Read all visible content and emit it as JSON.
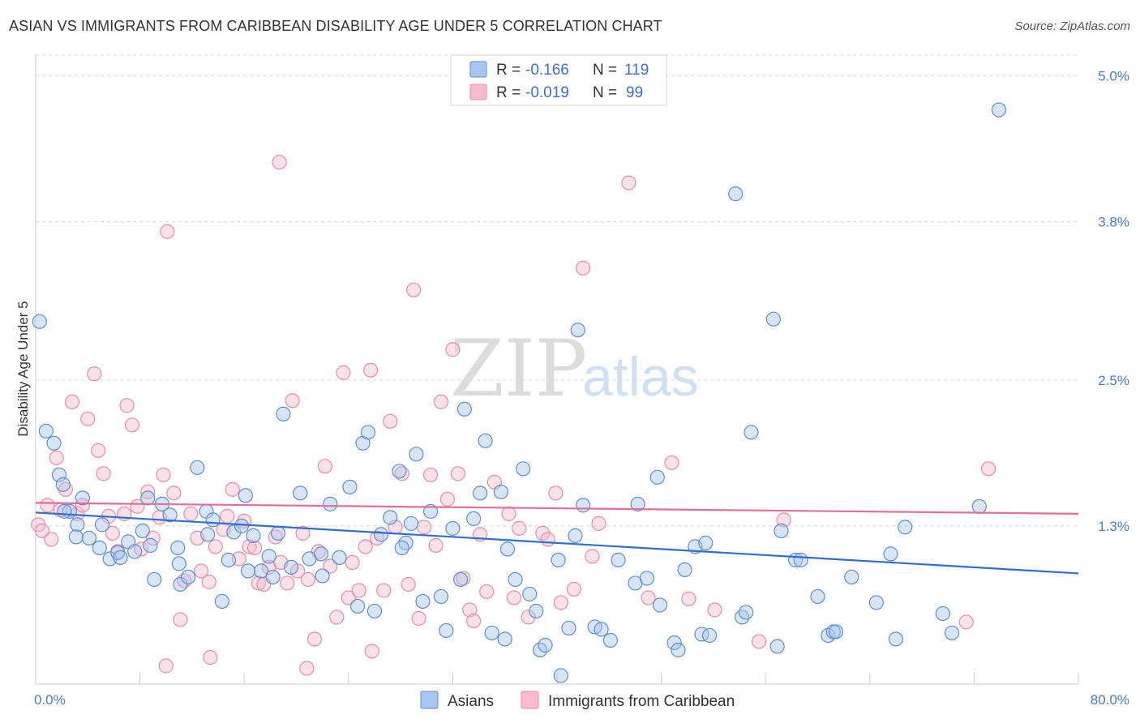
{
  "title": "ASIAN VS IMMIGRANTS FROM CARIBBEAN DISABILITY AGE UNDER 5 CORRELATION CHART",
  "source": "Source: ZipAtlas.com",
  "watermark": {
    "zip": "ZIP",
    "atlas": "atlas"
  },
  "colors": {
    "asian_fill": "#a9c6ee",
    "asian_stroke": "#5b8fd6",
    "asian_line": "#2f6fcf",
    "carib_fill": "#f6bccd",
    "carib_stroke": "#e98aa6",
    "carib_line": "#e0709a",
    "tick_label": "#4a7bc4",
    "grid": "#d8d8d8"
  },
  "legend": {
    "rows": [
      {
        "r_label": "R =",
        "r_value": "-0.166",
        "n_label": "N =",
        "n_value": "119"
      },
      {
        "r_label": "R =",
        "r_value": "-0.019",
        "n_label": "N =",
        "n_value": "99"
      }
    ]
  },
  "chart_data": {
    "type": "scatter",
    "title": "ASIAN VS IMMIGRANTS FROM CARIBBEAN DISABILITY AGE UNDER 5 CORRELATION CHART",
    "xlabel": "",
    "ylabel": "Disability Age Under 5",
    "xlim": [
      0,
      80
    ],
    "ylim": [
      0,
      5.17
    ],
    "x_tick_labels": [
      "0.0%",
      "80.0%"
    ],
    "y_ticks": [
      1.3,
      2.5,
      3.8,
      5.0
    ],
    "y_tick_labels": [
      "1.3%",
      "2.5%",
      "3.8%",
      "5.0%"
    ],
    "grid": "horizontal dashed",
    "legend_placement": "top-center",
    "series": [
      {
        "name": "Asians",
        "r": -0.166,
        "n": 119,
        "trend": [
          [
            0,
            1.41
          ],
          [
            80,
            0.91
          ]
        ],
        "points": [
          [
            0.3,
            2.98
          ],
          [
            0.8,
            2.08
          ],
          [
            1.4,
            1.98
          ],
          [
            1.8,
            1.72
          ],
          [
            2.1,
            1.64
          ],
          [
            2.6,
            1.42
          ],
          [
            3.2,
            1.31
          ],
          [
            3.6,
            1.53
          ],
          [
            2.2,
            1.42
          ],
          [
            3.1,
            1.21
          ],
          [
            4.1,
            1.2
          ],
          [
            5.1,
            1.31
          ],
          [
            5.7,
            1.03
          ],
          [
            6.3,
            1.08
          ],
          [
            7.1,
            1.17
          ],
          [
            7.6,
            1.09
          ],
          [
            8.2,
            1.26
          ],
          [
            8.8,
            1.14
          ],
          [
            9.1,
            0.86
          ],
          [
            9.7,
            1.48
          ],
          [
            10.3,
            1.39
          ],
          [
            11.1,
            0.82
          ],
          [
            11.7,
            0.88
          ],
          [
            12.4,
            1.78
          ],
          [
            13.1,
            1.42
          ],
          [
            13.6,
            1.35
          ],
          [
            14.3,
            0.68
          ],
          [
            14.8,
            1.02
          ],
          [
            15.2,
            1.25
          ],
          [
            16.1,
            1.55
          ],
          [
            16.7,
            1.22
          ],
          [
            17.3,
            0.93
          ],
          [
            17.9,
            1.05
          ],
          [
            18.6,
            1.24
          ],
          [
            19.0,
            2.22
          ],
          [
            19.6,
            0.96
          ],
          [
            20.3,
            1.57
          ],
          [
            21.0,
            1.03
          ],
          [
            21.9,
            1.07
          ],
          [
            22.6,
            1.48
          ],
          [
            23.3,
            1.04
          ],
          [
            24.1,
            1.62
          ],
          [
            25.1,
            1.98
          ],
          [
            25.5,
            2.07
          ],
          [
            26.0,
            0.6
          ],
          [
            26.5,
            1.23
          ],
          [
            27.2,
            1.37
          ],
          [
            27.9,
            1.75
          ],
          [
            28.4,
            1.16
          ],
          [
            29.2,
            1.89
          ],
          [
            29.7,
            0.68
          ],
          [
            30.3,
            1.42
          ],
          [
            31.1,
            0.72
          ],
          [
            31.5,
            0.44
          ],
          [
            32.0,
            1.28
          ],
          [
            32.6,
            0.86
          ],
          [
            32.9,
            2.26
          ],
          [
            33.6,
            1.36
          ],
          [
            34.1,
            1.57
          ],
          [
            34.5,
            2.0
          ],
          [
            35.0,
            0.42
          ],
          [
            35.7,
            1.58
          ],
          [
            36.2,
            1.11
          ],
          [
            36.8,
            0.86
          ],
          [
            37.4,
            1.77
          ],
          [
            37.9,
            0.74
          ],
          [
            38.4,
            0.6
          ],
          [
            38.7,
            0.28
          ],
          [
            39.1,
            0.32
          ],
          [
            40.1,
            1.02
          ],
          [
            40.3,
            0.07
          ],
          [
            40.9,
            0.46
          ],
          [
            41.6,
            2.91
          ],
          [
            41.4,
            1.22
          ],
          [
            42.0,
            1.47
          ],
          [
            42.9,
            0.47
          ],
          [
            43.4,
            0.45
          ],
          [
            44.1,
            0.36
          ],
          [
            44.7,
            1.02
          ],
          [
            46.0,
            0.83
          ],
          [
            46.2,
            1.48
          ],
          [
            46.9,
            0.87
          ],
          [
            47.7,
            1.7
          ],
          [
            47.9,
            0.65
          ],
          [
            49.0,
            0.34
          ],
          [
            49.3,
            0.28
          ],
          [
            49.8,
            0.94
          ],
          [
            50.6,
            1.13
          ],
          [
            51.1,
            0.41
          ],
          [
            51.4,
            1.16
          ],
          [
            53.7,
            4.03
          ],
          [
            54.2,
            0.55
          ],
          [
            54.5,
            0.59
          ],
          [
            54.9,
            2.07
          ],
          [
            56.6,
            3.0
          ],
          [
            57.2,
            1.26
          ],
          [
            58.3,
            1.02
          ],
          [
            58.7,
            1.02
          ],
          [
            60.0,
            0.72
          ],
          [
            60.8,
            0.4
          ],
          [
            61.2,
            0.43
          ],
          [
            61.4,
            0.43
          ],
          [
            62.6,
            0.88
          ],
          [
            64.5,
            0.67
          ],
          [
            65.6,
            1.07
          ],
          [
            66.0,
            0.37
          ],
          [
            66.7,
            1.29
          ],
          [
            69.6,
            0.58
          ],
          [
            70.3,
            0.42
          ],
          [
            73.9,
            4.72
          ],
          [
            72.4,
            1.46
          ],
          [
            56.9,
            0.31
          ],
          [
            51.7,
            0.4
          ],
          [
            36.0,
            0.37
          ],
          [
            28.1,
            1.12
          ],
          [
            22.0,
            0.89
          ],
          [
            18.2,
            0.88
          ],
          [
            11.0,
            0.99
          ],
          [
            6.5,
            1.04
          ],
          [
            4.9,
            1.12
          ],
          [
            15.8,
            1.3
          ],
          [
            8.6,
            1.53
          ],
          [
            10.9,
            1.12
          ],
          [
            13.2,
            1.23
          ],
          [
            16.3,
            0.93
          ],
          [
            24.7,
            0.64
          ],
          [
            28.8,
            1.32
          ]
        ]
      },
      {
        "name": "Immigrants from Caribbean",
        "r": -0.019,
        "n": 99,
        "trend": [
          [
            0,
            1.49
          ],
          [
            80,
            1.4
          ]
        ],
        "points": [
          [
            0.2,
            1.31
          ],
          [
            0.5,
            1.26
          ],
          [
            0.9,
            1.47
          ],
          [
            1.2,
            1.19
          ],
          [
            1.6,
            1.86
          ],
          [
            1.9,
            1.43
          ],
          [
            2.3,
            1.6
          ],
          [
            2.8,
            2.32
          ],
          [
            3.2,
            1.4
          ],
          [
            3.6,
            1.47
          ],
          [
            4.0,
            2.18
          ],
          [
            4.5,
            2.55
          ],
          [
            4.8,
            1.92
          ],
          [
            5.2,
            1.73
          ],
          [
            5.6,
            1.38
          ],
          [
            5.9,
            1.24
          ],
          [
            6.3,
            1.09
          ],
          [
            6.8,
            1.4
          ],
          [
            7.0,
            2.29
          ],
          [
            7.4,
            2.13
          ],
          [
            7.8,
            1.46
          ],
          [
            8.1,
            1.11
          ],
          [
            8.6,
            1.58
          ],
          [
            9.0,
            1.2
          ],
          [
            9.5,
            1.37
          ],
          [
            9.8,
            1.72
          ],
          [
            10.1,
            3.72
          ],
          [
            10.6,
            1.57
          ],
          [
            11.1,
            0.53
          ],
          [
            11.4,
            0.85
          ],
          [
            11.9,
            1.4
          ],
          [
            12.4,
            1.2
          ],
          [
            12.7,
            0.93
          ],
          [
            13.3,
            0.84
          ],
          [
            13.8,
            1.13
          ],
          [
            14.4,
            1.27
          ],
          [
            14.7,
            1.38
          ],
          [
            15.1,
            1.6
          ],
          [
            15.6,
            1.03
          ],
          [
            16.0,
            1.34
          ],
          [
            16.4,
            1.13
          ],
          [
            16.8,
            1.12
          ],
          [
            17.1,
            0.83
          ],
          [
            17.5,
            0.82
          ],
          [
            17.9,
            0.96
          ],
          [
            18.4,
            1.21
          ],
          [
            18.8,
            1.0
          ],
          [
            19.3,
            0.83
          ],
          [
            19.7,
            2.33
          ],
          [
            20.1,
            0.93
          ],
          [
            20.5,
            1.24
          ],
          [
            20.9,
            0.86
          ],
          [
            21.4,
            0.37
          ],
          [
            21.7,
            1.09
          ],
          [
            22.2,
            1.79
          ],
          [
            22.6,
            0.97
          ],
          [
            23.1,
            0.55
          ],
          [
            23.6,
            2.56
          ],
          [
            24.0,
            0.71
          ],
          [
            24.3,
            1.0
          ],
          [
            24.8,
            0.77
          ],
          [
            25.3,
            1.13
          ],
          [
            25.7,
            2.58
          ],
          [
            26.2,
            1.2
          ],
          [
            26.7,
            0.77
          ],
          [
            27.2,
            2.16
          ],
          [
            27.6,
            1.29
          ],
          [
            28.1,
            1.73
          ],
          [
            28.6,
            0.82
          ],
          [
            29.0,
            3.24
          ],
          [
            29.4,
            0.54
          ],
          [
            29.8,
            1.29
          ],
          [
            30.3,
            1.72
          ],
          [
            30.7,
            1.14
          ],
          [
            31.1,
            2.32
          ],
          [
            31.6,
            1.52
          ],
          [
            32.0,
            2.75
          ],
          [
            32.4,
            1.73
          ],
          [
            32.8,
            0.87
          ],
          [
            33.3,
            0.61
          ],
          [
            33.6,
            0.52
          ],
          [
            34.1,
            1.23
          ],
          [
            34.6,
            0.76
          ],
          [
            35.2,
            1.66
          ],
          [
            36.3,
            1.4
          ],
          [
            36.7,
            0.71
          ],
          [
            37.1,
            1.28
          ],
          [
            37.8,
            0.55
          ],
          [
            38.9,
            1.24
          ],
          [
            39.3,
            1.19
          ],
          [
            39.9,
            1.57
          ],
          [
            40.3,
            0.67
          ],
          [
            41.3,
            0.78
          ],
          [
            42.0,
            3.42
          ],
          [
            42.7,
            1.05
          ],
          [
            43.2,
            1.32
          ],
          [
            45.5,
            4.12
          ],
          [
            47.0,
            0.71
          ],
          [
            48.8,
            1.82
          ],
          [
            50.1,
            0.7
          ],
          [
            52.1,
            0.61
          ],
          [
            55.5,
            0.35
          ],
          [
            57.4,
            1.35
          ],
          [
            71.4,
            0.51
          ],
          [
            73.1,
            1.77
          ],
          [
            18.7,
            4.29
          ],
          [
            13.4,
            0.22
          ],
          [
            20.8,
            0.13
          ],
          [
            10.0,
            0.15
          ],
          [
            25.8,
            0.27
          ]
        ]
      }
    ]
  },
  "x_axis": {
    "left_label": "0.0%",
    "right_label": "80.0%"
  },
  "bottom_legend": [
    {
      "label": "Asians"
    },
    {
      "label": "Immigrants from Caribbean"
    }
  ]
}
